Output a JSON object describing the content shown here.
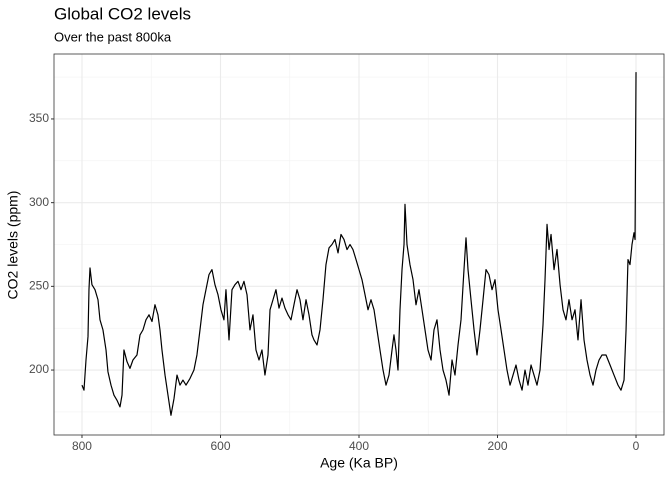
{
  "chart_data": {
    "type": "line",
    "title": "Global CO2 levels",
    "subtitle": "Over the past 800ka",
    "x_label": "Age (Ka BP)",
    "y_label": "CO2 levels (ppm)",
    "color": "#000000",
    "grid": true,
    "xlim": [
      840.4,
      -40.4
    ],
    "xticks": [
      800,
      600,
      400,
      200,
      0
    ],
    "xminor": [
      700,
      500,
      300,
      100
    ],
    "ylim": [
      161.2,
      388.8
    ],
    "yticks": [
      200,
      250,
      300,
      350
    ],
    "yminor": [
      175,
      225,
      275,
      325,
      375
    ],
    "x": [
      800,
      797.1,
      794.2,
      791.3,
      789.9,
      788.4,
      785.6,
      781.2,
      776.9,
      774.0,
      769.7,
      765.3,
      762.5,
      758.1,
      753.8,
      749.5,
      745.1,
      742.2,
      739.4,
      735.0,
      730.7,
      726.4,
      720.6,
      716.2,
      711.9,
      707.6,
      703.2,
      698.9,
      694.6,
      690.3,
      687.4,
      684.5,
      680.1,
      675.8,
      671.5,
      667.1,
      662.8,
      658.5,
      654.2,
      649.8,
      644.0,
      638.3,
      634.0,
      629.6,
      625.3,
      621.0,
      616.6,
      612.3,
      608.0,
      603.6,
      599.3,
      595.0,
      592.1,
      587.7,
      583.4,
      579.1,
      574.7,
      570.4,
      566.1,
      561.7,
      557.4,
      553.1,
      548.8,
      544.4,
      540.1,
      535.8,
      531.4,
      528.5,
      524.2,
      519.9,
      515.5,
      511.2,
      506.9,
      502.5,
      498.2,
      493.9,
      489.5,
      485.2,
      480.9,
      476.5,
      472.2,
      467.9,
      465.0,
      460.6,
      456.3,
      452.0,
      447.7,
      443.3,
      439.0,
      434.7,
      430.3,
      426.0,
      421.7,
      417.3,
      413.0,
      408.7,
      404.3,
      400.0,
      395.7,
      391.3,
      387.0,
      382.7,
      378.3,
      374.0,
      369.7,
      365.3,
      361.0,
      356.7,
      352.3,
      349.5,
      346.6,
      343.7,
      340.8,
      337.9,
      335.0,
      333.6,
      330.7,
      326.4,
      322.0,
      317.7,
      313.4,
      309.0,
      304.7,
      300.4,
      296.0,
      291.7,
      287.4,
      283.0,
      278.7,
      274.4,
      270.0,
      265.7,
      261.4,
      257.0,
      252.7,
      248.4,
      245.5,
      242.6,
      238.3,
      233.9,
      229.6,
      225.3,
      220.9,
      216.6,
      212.3,
      207.9,
      203.6,
      199.3,
      194.9,
      190.6,
      186.3,
      181.9,
      177.6,
      173.3,
      168.9,
      164.6,
      160.3,
      156.0,
      151.6,
      147.3,
      143.0,
      138.6,
      134.3,
      131.4,
      128.5,
      125.6,
      122.7,
      118.4,
      114.1,
      109.7,
      105.4,
      101.1,
      96.8,
      92.4,
      88.1,
      83.8,
      79.4,
      75.1,
      70.8,
      66.4,
      62.1,
      57.8,
      53.4,
      49.1,
      43.3,
      37.5,
      31.8,
      26.0,
      21.7,
      17.3,
      14.4,
      11.6,
      8.7,
      5.8,
      2.9,
      1.4,
      0
    ],
    "values": [
      191,
      188,
      206,
      220,
      248,
      261,
      251,
      248,
      242,
      230,
      224,
      212,
      199,
      191,
      185,
      182,
      178,
      185,
      212,
      205,
      201,
      206,
      209,
      221,
      224,
      230,
      233,
      229,
      239,
      233,
      224,
      212,
      197,
      185,
      173,
      183,
      197,
      191,
      194,
      191,
      195,
      200,
      209,
      224,
      239,
      248,
      257,
      260,
      251,
      245,
      236,
      230,
      248,
      218,
      248,
      251,
      253,
      248,
      253,
      245,
      224,
      233,
      212,
      206,
      212,
      197,
      209,
      236,
      242,
      248,
      237,
      243,
      237,
      233,
      230,
      239,
      248,
      242,
      230,
      242,
      233,
      221,
      218,
      215,
      224,
      242,
      263,
      273,
      275,
      278,
      270,
      281,
      278,
      272,
      275,
      272,
      266,
      260,
      254,
      245,
      236,
      242,
      236,
      224,
      212,
      200,
      191,
      197,
      212,
      221,
      212,
      200,
      236,
      260,
      275,
      299,
      275,
      263,
      254,
      239,
      248,
      236,
      224,
      212,
      206,
      224,
      230,
      212,
      200,
      194,
      185,
      206,
      197,
      215,
      230,
      260,
      279,
      260,
      242,
      224,
      209,
      224,
      242,
      260,
      257,
      248,
      254,
      236,
      224,
      212,
      200,
      191,
      197,
      203,
      194,
      188,
      200,
      191,
      203,
      197,
      191,
      200,
      227,
      254,
      287,
      272,
      281,
      260,
      272,
      251,
      236,
      230,
      242,
      230,
      236,
      218,
      242,
      218,
      206,
      197,
      191,
      200,
      206,
      209,
      209,
      203,
      197,
      191,
      188,
      194,
      224,
      266,
      263,
      275,
      282,
      278,
      378
    ]
  }
}
